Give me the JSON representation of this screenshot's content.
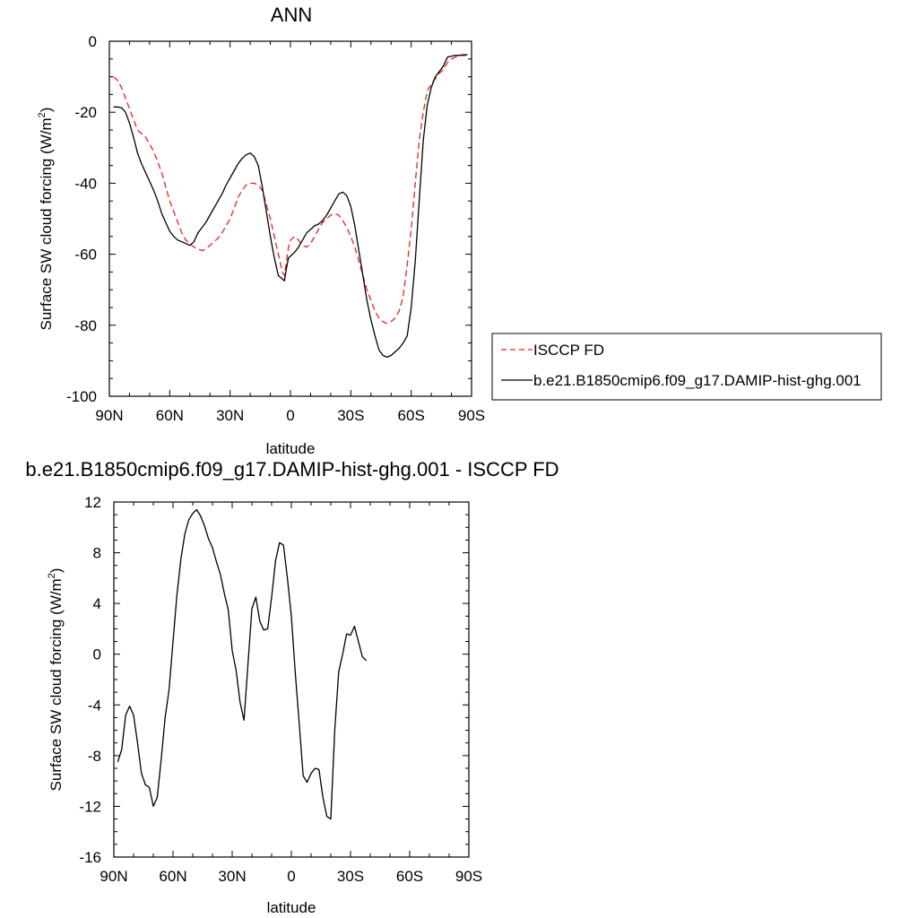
{
  "chart_data": [
    {
      "type": "line",
      "title": "ANN",
      "xlabel": "latitude",
      "ylabel": "Surface SW cloud forcing (W/m",
      "ylabel_sup": "2",
      "ylabel_close": ")",
      "xlim": [
        90,
        -90
      ],
      "ylim": [
        -100,
        0
      ],
      "xticks": [
        90,
        60,
        30,
        0,
        -30,
        -60,
        -90
      ],
      "xtick_labels": [
        "90N",
        "60N",
        "30N",
        "0",
        "30S",
        "60S",
        "90S"
      ],
      "yticks": [
        0,
        -20,
        -40,
        -60,
        -80,
        -100
      ],
      "ytick_labels": [
        "0",
        "-20",
        "-40",
        "-60",
        "-80",
        "-100"
      ],
      "grid": false,
      "legend": "right",
      "series": [
        {
          "name": "ISCCP FD",
          "color": "#e8231f",
          "dash": "dashed",
          "points": [
            [
              88,
              -10
            ],
            [
              86,
              -11
            ],
            [
              84,
              -13
            ],
            [
              82,
              -16
            ],
            [
              80,
              -19
            ],
            [
              78,
              -22
            ],
            [
              76,
              -25
            ],
            [
              74,
              -26
            ],
            [
              72,
              -27
            ],
            [
              70,
              -29
            ],
            [
              68,
              -31
            ],
            [
              66,
              -34
            ],
            [
              64,
              -37
            ],
            [
              62,
              -41
            ],
            [
              60,
              -45
            ],
            [
              58,
              -48
            ],
            [
              56,
              -51
            ],
            [
              54,
              -54
            ],
            [
              52,
              -56
            ],
            [
              50,
              -57
            ],
            [
              48,
              -58
            ],
            [
              46,
              -58.5
            ],
            [
              44,
              -59
            ],
            [
              42,
              -58.5
            ],
            [
              40,
              -57.5
            ],
            [
              38,
              -56.5
            ],
            [
              36,
              -55.5
            ],
            [
              34,
              -54
            ],
            [
              32,
              -52
            ],
            [
              30,
              -50
            ],
            [
              28,
              -47
            ],
            [
              26,
              -44
            ],
            [
              24,
              -42
            ],
            [
              22,
              -40.5
            ],
            [
              20,
              -40
            ],
            [
              18,
              -40
            ],
            [
              16,
              -40.5
            ],
            [
              14,
              -42
            ],
            [
              12,
              -46
            ],
            [
              10,
              -50
            ],
            [
              8,
              -55
            ],
            [
              6,
              -60
            ],
            [
              4,
              -65
            ],
            [
              3,
              -66
            ],
            [
              2,
              -62
            ],
            [
              1,
              -58
            ],
            [
              0,
              -56
            ],
            [
              -2,
              -55
            ],
            [
              -4,
              -56
            ],
            [
              -6,
              -57.5
            ],
            [
              -8,
              -58
            ],
            [
              -10,
              -57
            ],
            [
              -12,
              -55
            ],
            [
              -14,
              -53
            ],
            [
              -16,
              -51
            ],
            [
              -18,
              -50
            ],
            [
              -20,
              -49
            ],
            [
              -22,
              -48.5
            ],
            [
              -24,
              -49
            ],
            [
              -26,
              -50.5
            ],
            [
              -28,
              -52.5
            ],
            [
              -30,
              -55
            ],
            [
              -32,
              -58
            ],
            [
              -34,
              -62
            ],
            [
              -36,
              -66
            ],
            [
              -38,
              -70
            ],
            [
              -40,
              -73
            ],
            [
              -42,
              -76
            ],
            [
              -44,
              -78
            ],
            [
              -46,
              -79
            ],
            [
              -48,
              -79.5
            ],
            [
              -50,
              -79
            ],
            [
              -52,
              -78
            ],
            [
              -54,
              -76
            ],
            [
              -56,
              -72
            ],
            [
              -58,
              -63
            ],
            [
              -60,
              -53
            ],
            [
              -62,
              -40
            ],
            [
              -64,
              -28
            ],
            [
              -66,
              -20
            ],
            [
              -68,
              -14
            ],
            [
              -70,
              -12
            ],
            [
              -72,
              -10.5
            ],
            [
              -74,
              -9
            ],
            [
              -76,
              -8
            ],
            [
              -78,
              -6
            ],
            [
              -80,
              -5
            ],
            [
              -82,
              -4.5
            ],
            [
              -84,
              -4
            ],
            [
              -86,
              -4
            ],
            [
              -88,
              -4
            ]
          ]
        },
        {
          "name": "b.e21.B1850cmip6.f09_g17.DAMIP-hist-ghg.001",
          "color": "#000000",
          "dash": "solid",
          "points": [
            [
              88,
              -18.5
            ],
            [
              86,
              -18.5
            ],
            [
              84,
              -18.7
            ],
            [
              82,
              -20
            ],
            [
              80,
              -23
            ],
            [
              78,
              -27
            ],
            [
              76,
              -31.5
            ],
            [
              74,
              -34.5
            ],
            [
              72,
              -37
            ],
            [
              70,
              -39.5
            ],
            [
              68,
              -42
            ],
            [
              66,
              -45
            ],
            [
              64,
              -48.5
            ],
            [
              62,
              -51
            ],
            [
              60,
              -53.5
            ],
            [
              58,
              -55
            ],
            [
              56,
              -56
            ],
            [
              54,
              -56.5
            ],
            [
              52,
              -57
            ],
            [
              50,
              -57.5
            ],
            [
              48,
              -56.5
            ],
            [
              46,
              -54
            ],
            [
              44,
              -52.5
            ],
            [
              42,
              -51
            ],
            [
              40,
              -49
            ],
            [
              38,
              -47
            ],
            [
              36,
              -45
            ],
            [
              34,
              -43
            ],
            [
              32,
              -40.5
            ],
            [
              30,
              -38.5
            ],
            [
              28,
              -36.5
            ],
            [
              26,
              -34.5
            ],
            [
              24,
              -33
            ],
            [
              22,
              -32
            ],
            [
              20,
              -31.5
            ],
            [
              18,
              -32.5
            ],
            [
              16,
              -35
            ],
            [
              14,
              -41
            ],
            [
              12,
              -48
            ],
            [
              10,
              -55
            ],
            [
              8,
              -61
            ],
            [
              6,
              -66
            ],
            [
              4,
              -67
            ],
            [
              3,
              -67.5
            ],
            [
              2,
              -64
            ],
            [
              1,
              -61
            ],
            [
              0,
              -60.5
            ],
            [
              -2,
              -59.5
            ],
            [
              -4,
              -58
            ],
            [
              -6,
              -56
            ],
            [
              -8,
              -54
            ],
            [
              -10,
              -53
            ],
            [
              -12,
              -52
            ],
            [
              -14,
              -51.5
            ],
            [
              -16,
              -50.5
            ],
            [
              -18,
              -49
            ],
            [
              -20,
              -47
            ],
            [
              -22,
              -45
            ],
            [
              -24,
              -43
            ],
            [
              -26,
              -42.5
            ],
            [
              -28,
              -43.5
            ],
            [
              -30,
              -46.5
            ],
            [
              -32,
              -52
            ],
            [
              -34,
              -59
            ],
            [
              -36,
              -66
            ],
            [
              -38,
              -73
            ],
            [
              -40,
              -78.5
            ],
            [
              -42,
              -83
            ],
            [
              -44,
              -87
            ],
            [
              -46,
              -88.5
            ],
            [
              -48,
              -89
            ],
            [
              -50,
              -88.5
            ],
            [
              -52,
              -87.5
            ],
            [
              -54,
              -86.5
            ],
            [
              -56,
              -85
            ],
            [
              -58,
              -83
            ],
            [
              -60,
              -75
            ],
            [
              -62,
              -62
            ],
            [
              -64,
              -45
            ],
            [
              -66,
              -28
            ],
            [
              -68,
              -18
            ],
            [
              -70,
              -13
            ],
            [
              -72,
              -10
            ],
            [
              -74,
              -8.5
            ],
            [
              -76,
              -7
            ],
            [
              -78,
              -4.5
            ],
            [
              -80,
              -4.2
            ],
            [
              -82,
              -4
            ],
            [
              -84,
              -4
            ],
            [
              -86,
              -3.8
            ],
            [
              -88,
              -3.8
            ]
          ]
        }
      ]
    },
    {
      "type": "line",
      "title": "b.e21.B1850cmip6.f09_g17.DAMIP-hist-ghg.001 - ISCCP FD",
      "xlabel": "latitude",
      "ylabel": "Surface SW cloud forcing (W/m",
      "ylabel_sup": "2",
      "ylabel_close": ")",
      "xlim": [
        90,
        -90
      ],
      "ylim": [
        -16,
        12
      ],
      "xticks": [
        90,
        60,
        30,
        0,
        -30,
        -60,
        -90
      ],
      "xtick_labels": [
        "90N",
        "60N",
        "30N",
        "0",
        "30S",
        "60S",
        "90S"
      ],
      "yticks": [
        12,
        8,
        4,
        0,
        -4,
        -8,
        -12,
        -16
      ],
      "ytick_labels": [
        "12",
        "8",
        "4",
        "0",
        "-4",
        "-8",
        "-12",
        "-16"
      ],
      "grid": false,
      "series": [
        {
          "color": "#000000",
          "dash": "solid",
          "points": [
            [
              88,
              -8.5
            ],
            [
              86,
              -7.5
            ],
            [
              84,
              -4.8
            ],
            [
              82,
              -4.1
            ],
            [
              80,
              -4.8
            ],
            [
              78,
              -7
            ],
            [
              76,
              -9.4
            ],
            [
              74,
              -10.3
            ],
            [
              72,
              -10.5
            ],
            [
              70,
              -12
            ],
            [
              68,
              -11.3
            ],
            [
              66,
              -8.3
            ],
            [
              64,
              -5
            ],
            [
              62,
              -2.8
            ],
            [
              60,
              1
            ],
            [
              58,
              4.7
            ],
            [
              56,
              7.5
            ],
            [
              54,
              9.5
            ],
            [
              52,
              10.6
            ],
            [
              50,
              11.1
            ],
            [
              48,
              11.4
            ],
            [
              46,
              10.9
            ],
            [
              44,
              10.1
            ],
            [
              42,
              9.1
            ],
            [
              40,
              8.4
            ],
            [
              38,
              7.3
            ],
            [
              36,
              6.3
            ],
            [
              34,
              4.8
            ],
            [
              32,
              3.5
            ],
            [
              30,
              0.3
            ],
            [
              28,
              -1.3
            ],
            [
              26,
              -3.8
            ],
            [
              24,
              -5.2
            ],
            [
              22,
              -0.8
            ],
            [
              20,
              3.6
            ],
            [
              18,
              4.5
            ],
            [
              16,
              2.6
            ],
            [
              14,
              1.9
            ],
            [
              12,
              2
            ],
            [
              10,
              4.5
            ],
            [
              8,
              7.4
            ],
            [
              6,
              8.8
            ],
            [
              4,
              8.6
            ],
            [
              2,
              6
            ],
            [
              0,
              3
            ],
            [
              -2,
              -1.5
            ],
            [
              -4,
              -5.5
            ],
            [
              -6,
              -9.6
            ],
            [
              -8,
              -10.1
            ],
            [
              -10,
              -9.4
            ],
            [
              -12,
              -9
            ],
            [
              -14,
              -9.1
            ],
            [
              -16,
              -11.3
            ],
            [
              -18,
              -12.8
            ],
            [
              -20,
              -13
            ],
            [
              -22,
              -6
            ],
            [
              -24,
              -1.4
            ],
            [
              -26,
              0
            ],
            [
              -28,
              1.6
            ],
            [
              -30,
              1.5
            ],
            [
              -32,
              2.2
            ],
            [
              -34,
              1
            ],
            [
              -36,
              -0.2
            ],
            [
              -38,
              -0.5
            ]
          ]
        }
      ]
    }
  ]
}
